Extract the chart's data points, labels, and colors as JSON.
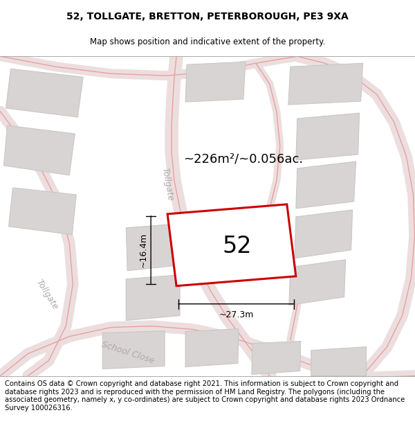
{
  "title": "52, TOLLGATE, BRETTON, PETERBOROUGH, PE3 9XA",
  "subtitle": "Map shows position and indicative extent of the property.",
  "footer": "Contains OS data © Crown copyright and database right 2021. This information is subject to Crown copyright and database rights 2023 and is reproduced with the permission of HM Land Registry. The polygons (including the associated geometry, namely x, y co-ordinates) are subject to Crown copyright and database rights 2023 Ordnance Survey 100026316.",
  "area_label": "~226m²/~0.056ac.",
  "number_label": "52",
  "dim_width": "~27.3m",
  "dim_height": "~16.4m",
  "road_label_tollgate_center": "Tollgate",
  "road_label_tollgate_left": "Tollgate",
  "road_label_school": "School Close",
  "map_bg": "#f2efef",
  "plot_color": "#cc0000",
  "road_line_color": "#e8a0a0",
  "building_fill": "#d8d4d4",
  "building_edge": "#c8c4c4",
  "title_fontsize": 10,
  "subtitle_fontsize": 8.5,
  "footer_fontsize": 7.2,
  "area_fontsize": 13,
  "number_fontsize": 24,
  "dim_fontsize": 9,
  "road_fontsize": 9
}
